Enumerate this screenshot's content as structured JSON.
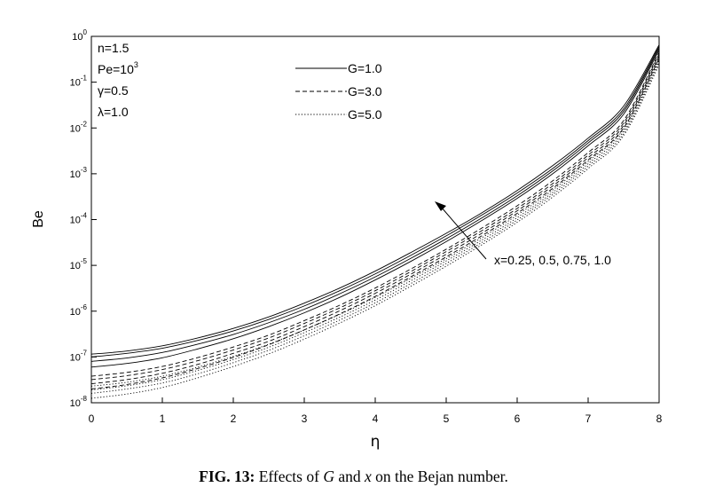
{
  "chart_data": {
    "type": "line",
    "xlabel": "η",
    "ylabel": "Be",
    "xlim": [
      0,
      8
    ],
    "ylim": [
      1e-08,
      1
    ],
    "yscale": "log",
    "grid": false,
    "legend_position": "top-center",
    "x_ticks": [
      "0",
      "1",
      "2",
      "3",
      "4",
      "5",
      "6",
      "7",
      "8"
    ],
    "y_ticks": [
      {
        "base": "10",
        "exp": "-8"
      },
      {
        "base": "10",
        "exp": "-7"
      },
      {
        "base": "10",
        "exp": "-6"
      },
      {
        "base": "10",
        "exp": "-5"
      },
      {
        "base": "10",
        "exp": "-4"
      },
      {
        "base": "10",
        "exp": "-3"
      },
      {
        "base": "10",
        "exp": "-2"
      },
      {
        "base": "10",
        "exp": "-1"
      },
      {
        "base": "10",
        "exp": "0"
      }
    ],
    "parameters": [
      {
        "text": "n=1.5"
      },
      {
        "text": "Pe=10",
        "sup": "3"
      },
      {
        "text": "γ=0.5"
      },
      {
        "text": "λ=1.0"
      }
    ],
    "legend": [
      {
        "label": "G=1.0",
        "style": "solid"
      },
      {
        "label": "G=3.0",
        "style": "dashed"
      },
      {
        "label": "G=5.0",
        "style": "dotted"
      }
    ],
    "annotation": "x=0.25, 0.5, 0.75, 1.0",
    "x": [
      0,
      0.5,
      1,
      1.5,
      2,
      2.5,
      3,
      3.5,
      4,
      4.5,
      5,
      5.5,
      6,
      6.5,
      7,
      7.5,
      8
    ],
    "series": [
      {
        "G": "1.0",
        "style": "solid",
        "values": [
          1.15e-07,
          1.35e-07,
          1.75e-07,
          2.6e-07,
          4.2e-07,
          7.5e-07,
          1.5e-06,
          3.2e-06,
          7.5e-06,
          1.9e-05,
          5e-05,
          0.00014,
          0.00043,
          0.0015,
          0.006,
          0.03,
          0.65
        ]
      },
      {
        "G": "1.0",
        "style": "solid",
        "values": [
          1e-07,
          1.2e-07,
          1.55e-07,
          2.3e-07,
          3.7e-07,
          6.6e-07,
          1.3e-06,
          2.8e-06,
          6.5e-06,
          1.65e-05,
          4.4e-05,
          0.000125,
          0.00038,
          0.0013,
          0.0053,
          0.026,
          0.6
        ]
      },
      {
        "G": "1.0",
        "style": "solid",
        "values": [
          8e-08,
          9.5e-08,
          1.25e-07,
          1.9e-07,
          3.1e-07,
          5.6e-07,
          1.1e-06,
          2.4e-06,
          5.6e-06,
          1.42e-05,
          3.8e-05,
          0.000108,
          0.00033,
          0.00115,
          0.0047,
          0.023,
          0.55
        ]
      },
      {
        "G": "1.0",
        "style": "solid",
        "values": [
          6e-08,
          7.2e-08,
          9.6e-08,
          1.5e-07,
          2.5e-07,
          4.6e-07,
          9.2e-07,
          2e-06,
          4.8e-06,
          1.22e-05,
          3.3e-05,
          9.5e-05,
          0.00029,
          0.001,
          0.0041,
          0.02,
          0.5
        ]
      },
      {
        "G": "3.0",
        "style": "dashed",
        "values": [
          3.8e-08,
          4.6e-08,
          6.2e-08,
          9.7e-08,
          1.65e-07,
          3e-07,
          6.2e-07,
          1.35e-06,
          3.2e-06,
          8.3e-06,
          2.25e-05,
          6.5e-05,
          0.0002,
          0.0007,
          0.0029,
          0.0145,
          0.45
        ]
      },
      {
        "G": "3.0",
        "style": "dashed",
        "values": [
          3.2e-08,
          3.9e-08,
          5.3e-08,
          8.3e-08,
          1.42e-07,
          2.6e-07,
          5.4e-07,
          1.18e-06,
          2.8e-06,
          7.3e-06,
          2e-05,
          5.7e-05,
          0.000175,
          0.00061,
          0.00255,
          0.0128,
          0.41
        ]
      },
      {
        "G": "3.0",
        "style": "dashed",
        "values": [
          2.6e-08,
          3.2e-08,
          4.4e-08,
          6.9e-08,
          1.2e-07,
          2.2e-07,
          4.6e-07,
          1.02e-06,
          2.45e-06,
          6.4e-06,
          1.75e-05,
          5e-05,
          0.000155,
          0.00054,
          0.00225,
          0.0113,
          0.37
        ]
      },
      {
        "G": "3.0",
        "style": "dashed",
        "values": [
          2e-08,
          2.5e-08,
          3.5e-08,
          5.6e-08,
          9.8e-08,
          1.85e-07,
          3.9e-07,
          8.7e-07,
          2.1e-06,
          5.6e-06,
          1.53e-05,
          4.4e-05,
          0.000137,
          0.00048,
          0.002,
          0.01,
          0.33
        ]
      },
      {
        "G": "5.0",
        "style": "dotted",
        "values": [
          2.3e-08,
          2.8e-08,
          3.8e-08,
          6e-08,
          1.03e-07,
          1.9e-07,
          3.9e-07,
          8.5e-07,
          2e-06,
          5.2e-06,
          1.4e-05,
          4e-05,
          0.000125,
          0.00044,
          0.00185,
          0.0095,
          0.33
        ]
      },
      {
        "G": "5.0",
        "style": "dotted",
        "values": [
          1.9e-08,
          2.35e-08,
          3.2e-08,
          5.1e-08,
          8.8e-08,
          1.63e-07,
          3.4e-07,
          7.4e-07,
          1.75e-06,
          4.6e-06,
          1.25e-05,
          3.55e-05,
          0.00011,
          0.00039,
          0.00165,
          0.0085,
          0.3
        ]
      },
      {
        "G": "5.0",
        "style": "dotted",
        "values": [
          1.6e-08,
          2e-08,
          2.7e-08,
          4.3e-08,
          7.5e-08,
          1.4e-07,
          2.9e-07,
          6.4e-07,
          1.52e-06,
          4e-06,
          1.1e-05,
          3.15e-05,
          9.8e-05,
          0.00035,
          0.00147,
          0.0076,
          0.27
        ]
      },
      {
        "G": "5.0",
        "style": "dotted",
        "values": [
          1.25e-08,
          1.55e-08,
          2.15e-08,
          3.5e-08,
          6.2e-08,
          1.17e-07,
          2.45e-07,
          5.5e-07,
          1.32e-06,
          3.5e-06,
          9.6e-06,
          2.8e-05,
          8.7e-05,
          0.00031,
          0.0013,
          0.0068,
          0.24
        ]
      }
    ]
  },
  "caption": {
    "label": "FIG. 13:",
    "text_1": " Effects of ",
    "var_1": "G",
    "text_2": " and ",
    "var_2": "x",
    "text_3": " on the Bejan number."
  }
}
